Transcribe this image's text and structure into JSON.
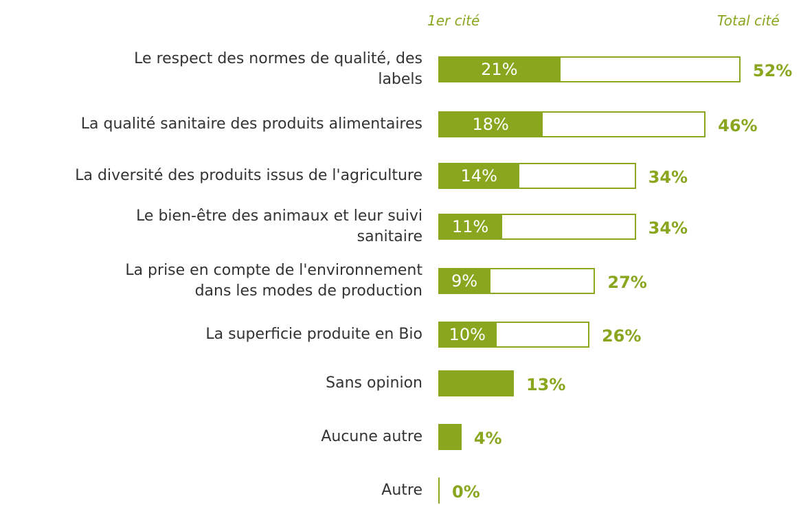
{
  "chart_data": {
    "type": "bar",
    "orientation": "horizontal",
    "categories": [
      "Le respect des normes de qualité, des\nlabels",
      "La qualité sanitaire des produits alimentaires",
      "La diversité des produits issus de l'agriculture",
      "Le bien-être des animaux et leur suivi\nsanitaire",
      "La prise en compte de l'environnement\ndans les modes de production",
      "La superficie produite en Bio",
      "Sans opinion",
      "Aucune autre",
      "Autre"
    ],
    "series": [
      {
        "name": "1er cité",
        "color": "#8aa61f",
        "values": [
          21,
          18,
          14,
          11,
          9,
          10,
          null,
          null,
          null
        ],
        "value_labels": [
          "21%",
          "18%",
          "14%",
          "11%",
          "9%",
          "10%",
          null,
          null,
          null
        ]
      },
      {
        "name": "Total cité",
        "color": "#8aa61f",
        "values": [
          52,
          46,
          34,
          34,
          27,
          26,
          13,
          4,
          0
        ],
        "value_labels": [
          "52%",
          "46%",
          "34%",
          "34%",
          "27%",
          "26%",
          "13%",
          "4%",
          "0%"
        ]
      }
    ]
  }
}
